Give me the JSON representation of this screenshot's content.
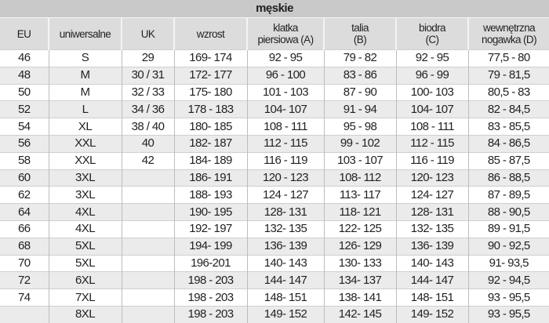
{
  "title": "męskie",
  "columns": [
    "EU",
    "uniwersalne",
    "UK",
    "wzrost",
    "klatka\npiersiowa (A)",
    "talia\n(B)",
    "biodra\n(C)",
    "wewnętrzna\nnogawka (D)"
  ],
  "rows": [
    [
      "46",
      "S",
      "29",
      "169- 174",
      "92 - 95",
      "79 - 82",
      "92 - 95",
      "77,5 - 80"
    ],
    [
      "48",
      "M",
      "30 / 31",
      "172- 177",
      "96 - 100",
      "83 - 86",
      "96 - 99",
      "79 - 81,5"
    ],
    [
      "50",
      "M",
      "32 / 33",
      "175- 180",
      "101 - 103",
      "87 - 90",
      "100- 103",
      "80,5 - 83"
    ],
    [
      "52",
      "L",
      "34 / 36",
      "178 - 183",
      "104- 107",
      "91 - 94",
      "104- 107",
      "82 - 84,5"
    ],
    [
      "54",
      "XL",
      "38 / 40",
      "180- 185",
      "108 - 111",
      "95 - 98",
      "108 - 111",
      "83 - 85,5"
    ],
    [
      "56",
      "XXL",
      "40",
      "182- 187",
      "112 - 115",
      "99 - 102",
      "112 - 115",
      "84 - 86,5"
    ],
    [
      "58",
      "XXL",
      "42",
      "184- 189",
      "116 - 119",
      "103 - 107",
      "116 - 119",
      "85 - 87,5"
    ],
    [
      "60",
      "3XL",
      "",
      "186- 191",
      "120 - 123",
      "108- 112",
      "120- 123",
      "86 - 88,5"
    ],
    [
      "62",
      "3XL",
      "",
      "188- 193",
      "124 - 127",
      "113- 117",
      "124- 127",
      "87 - 89,5"
    ],
    [
      "64",
      "4XL",
      "",
      "190- 195",
      "128- 131",
      "118- 121",
      "128- 131",
      "88 - 90,5"
    ],
    [
      "66",
      "4XL",
      "",
      "192- 197",
      "132- 135",
      "122- 125",
      "132- 135",
      "89 - 91,5"
    ],
    [
      "68",
      "5XL",
      "",
      "194- 199",
      "136- 139",
      "126- 129",
      "136- 139",
      "90 - 92,5"
    ],
    [
      "70",
      "5XL",
      "",
      "196-201",
      "140- 143",
      "130- 133",
      "140- 143",
      "91- 93,5"
    ],
    [
      "72",
      "6XL",
      "",
      "198 - 203",
      "144- 147",
      "134- 137",
      "144- 147",
      "92 - 94,5"
    ],
    [
      "74",
      "7XL",
      "",
      "198 - 203",
      "148- 151",
      "138- 141",
      "148- 151",
      "93 - 95,5"
    ],
    [
      "",
      "8XL",
      "",
      "198 - 203",
      "149- 152",
      "142- 145",
      "149- 152",
      "93 - 95,5"
    ]
  ]
}
